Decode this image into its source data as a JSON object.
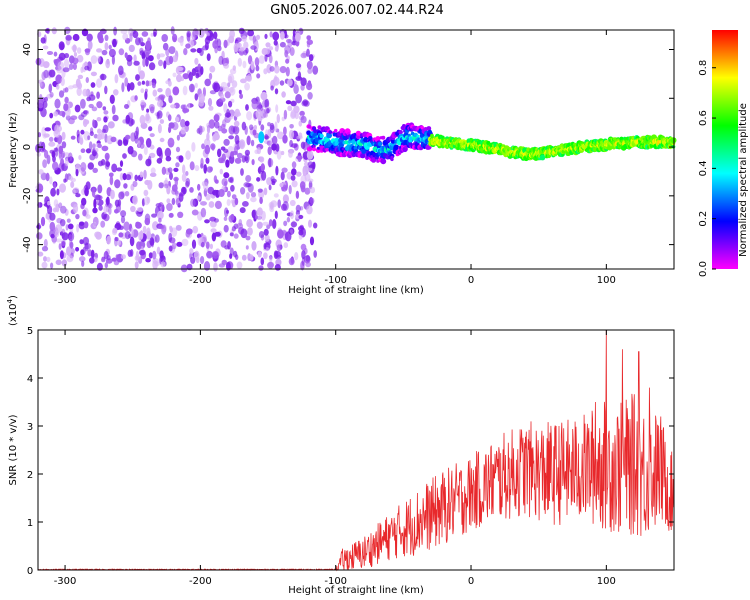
{
  "title": "GN05.2026.007.02.44.R24",
  "chart_data": [
    {
      "type": "heatmap",
      "name": "spectrogram",
      "xlabel": "Height of straight line (km)",
      "ylabel": "Frequency (Hz)",
      "xlim": [
        -320,
        150
      ],
      "ylim": [
        -50,
        48
      ],
      "xticks": [
        -300,
        -200,
        -100,
        0,
        100
      ],
      "yticks": [
        -40,
        -20,
        0,
        20,
        40
      ],
      "noise_region_x": [
        -320,
        -115
      ],
      "signal_region_x": [
        -120,
        150
      ],
      "signal_center_hz": {
        "x": [
          -120,
          -100,
          -80,
          -70,
          -60,
          -50,
          -40,
          -20,
          0,
          20,
          40,
          60,
          80,
          100,
          120,
          150
        ],
        "y": [
          4,
          2,
          1,
          -1,
          -1,
          4,
          4,
          2,
          1,
          -1,
          -3,
          -2,
          0,
          1,
          2,
          2
        ]
      },
      "colorbar": {
        "label": "Normalized spectral amplitude",
        "range": [
          0.0,
          0.95
        ],
        "ticks": [
          "0.0",
          "0.2",
          "0.4",
          "0.6",
          "0.8"
        ],
        "colormap": [
          "#ff00ff",
          "#0000ff",
          "#00ffff",
          "#00ff00",
          "#ffff00",
          "#ff0000"
        ]
      }
    },
    {
      "type": "line",
      "name": "snr",
      "xlabel": "Height of straight line (km)",
      "ylabel": "SNR (10 * v/v)",
      "multiplier": "(x10",
      "multiplier_exp": "4",
      "multiplier_close": ")",
      "xlim": [
        -320,
        150
      ],
      "ylim": [
        0,
        5
      ],
      "xticks": [
        -300,
        -200,
        -100,
        0,
        100
      ],
      "yticks": [
        0,
        1,
        2,
        3,
        4,
        5
      ],
      "color": "#e8282b",
      "envelope": {
        "x": [
          -320,
          -100,
          -95,
          -80,
          -60,
          -40,
          -20,
          0,
          20,
          40,
          60,
          80,
          100,
          110,
          120,
          130,
          140,
          150
        ],
        "mean": [
          0.01,
          0.01,
          0.2,
          0.35,
          0.7,
          1.0,
          1.3,
          1.6,
          1.9,
          2.1,
          2.0,
          2.1,
          2.2,
          2.1,
          2.2,
          2.0,
          2.1,
          1.5
        ],
        "spread": [
          0.01,
          0.01,
          0.25,
          0.35,
          0.5,
          0.7,
          0.8,
          0.8,
          0.9,
          1.0,
          1.1,
          1.1,
          1.4,
          1.4,
          1.5,
          1.4,
          1.2,
          0.8
        ]
      },
      "peaks": [
        {
          "x": 100,
          "y": 5.0
        },
        {
          "x": 112,
          "y": 4.6
        },
        {
          "x": 124,
          "y": 4.55
        },
        {
          "x": 132,
          "y": 3.8
        },
        {
          "x": 92,
          "y": 3.5
        }
      ]
    }
  ]
}
